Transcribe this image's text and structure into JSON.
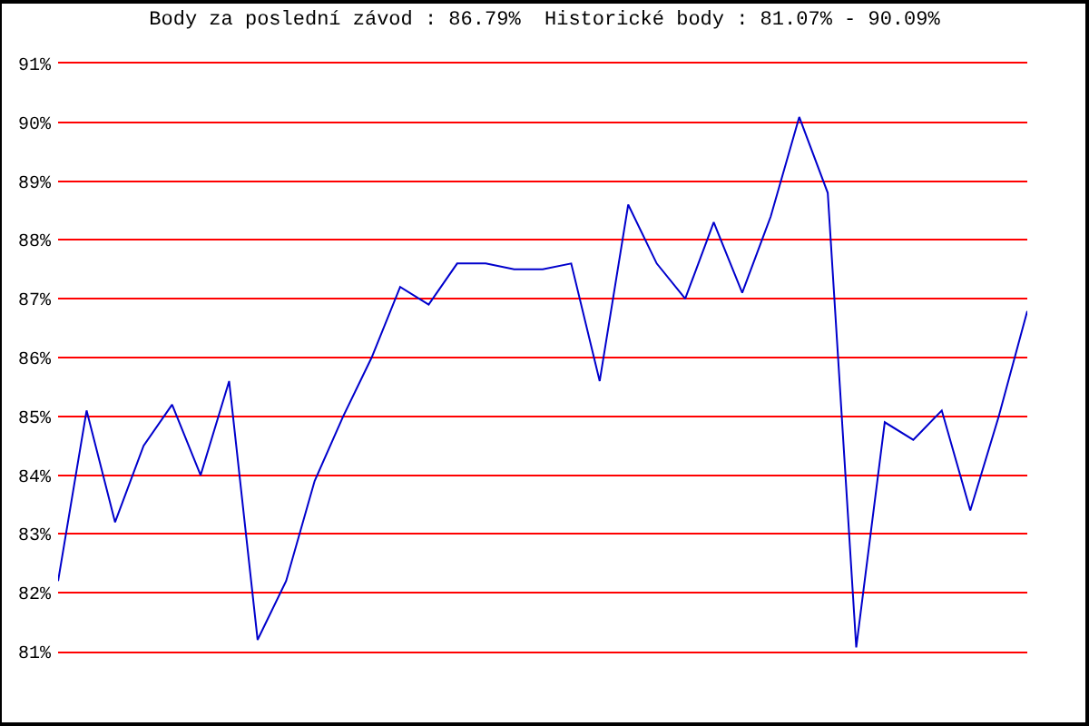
{
  "chart_data": {
    "type": "line",
    "title": "Body za poslední závod : 86.79%  Historické body : 81.07% - 90.09%",
    "categories": [
      null,
      null,
      null,
      null,
      null,
      null,
      null,
      null,
      null,
      null,
      null,
      null,
      null,
      null,
      null,
      null,
      null,
      null,
      null,
      null,
      null,
      null,
      null,
      null,
      null,
      null,
      null,
      null,
      null,
      null,
      null,
      null,
      null,
      null,
      null
    ],
    "series": [
      {
        "color": "#0000cc",
        "values": [
          82.2,
          85.1,
          83.2,
          84.5,
          85.2,
          84.0,
          85.6,
          81.2,
          82.2,
          83.9,
          85.0,
          86.0,
          87.2,
          86.9,
          87.6,
          87.6,
          87.5,
          87.5,
          87.6,
          85.6,
          88.6,
          87.6,
          87.0,
          88.3,
          87.1,
          88.4,
          90.09,
          88.8,
          81.07,
          84.9,
          84.6,
          85.1,
          83.4,
          85.0,
          86.79
        ]
      }
    ],
    "ylim": [
      81,
      91
    ],
    "yticks": [
      {
        "value": 81,
        "label": "81%"
      },
      {
        "value": 82,
        "label": "82%"
      },
      {
        "value": 83,
        "label": "83%"
      },
      {
        "value": 84,
        "label": "84%"
      },
      {
        "value": 85,
        "label": "85%"
      },
      {
        "value": 86,
        "label": "86%"
      },
      {
        "value": 87,
        "label": "87%"
      },
      {
        "value": 88,
        "label": "88%"
      },
      {
        "value": 89,
        "label": "89%"
      },
      {
        "value": 90,
        "label": "90%"
      },
      {
        "value": 91,
        "label": "91%"
      }
    ],
    "tick_labels": "y",
    "grid": "y",
    "marker": "none",
    "line_style": "solid"
  }
}
